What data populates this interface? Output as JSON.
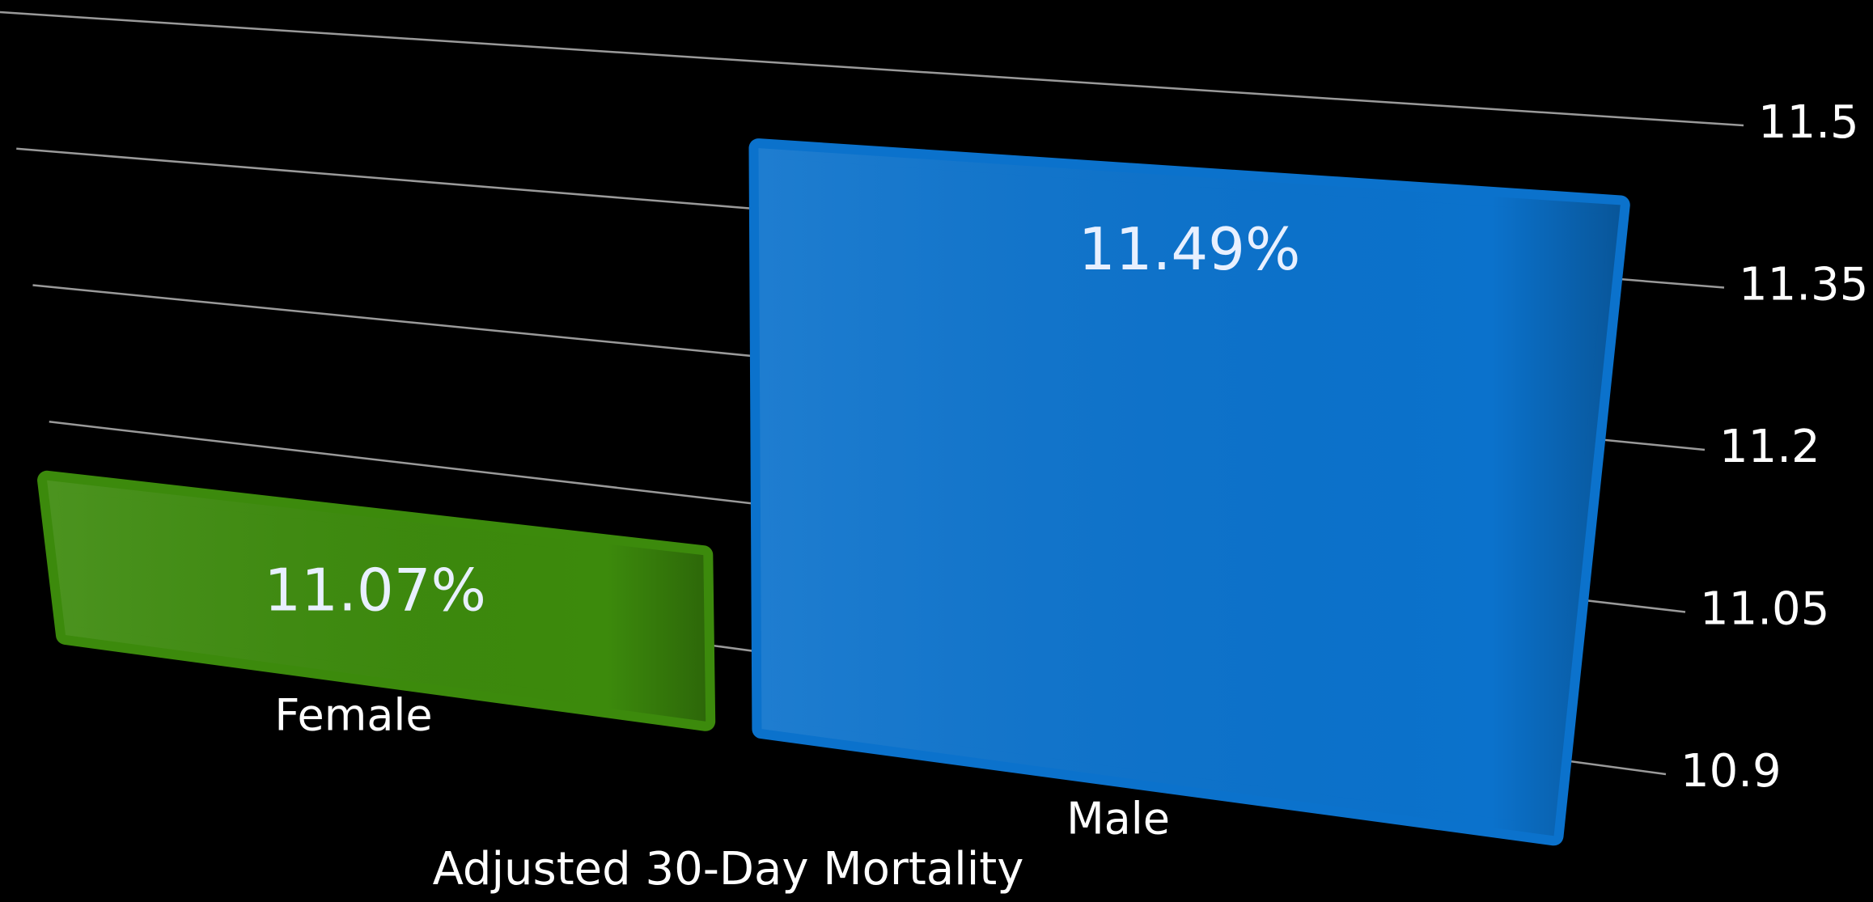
{
  "chart_data": {
    "type": "bar",
    "categories": [
      "Female",
      "Male"
    ],
    "values": [
      11.07,
      11.49
    ],
    "value_labels": [
      "11.07%",
      "11.49%"
    ],
    "colors": [
      "#3c8a0c",
      "#0b72cc"
    ],
    "x_label": "Adjusted 30-Day Mortality",
    "ylim": [
      10.9,
      11.5
    ],
    "yticks": [
      10.9,
      11.05,
      11.2,
      11.35,
      11.5
    ],
    "grid": true
  }
}
